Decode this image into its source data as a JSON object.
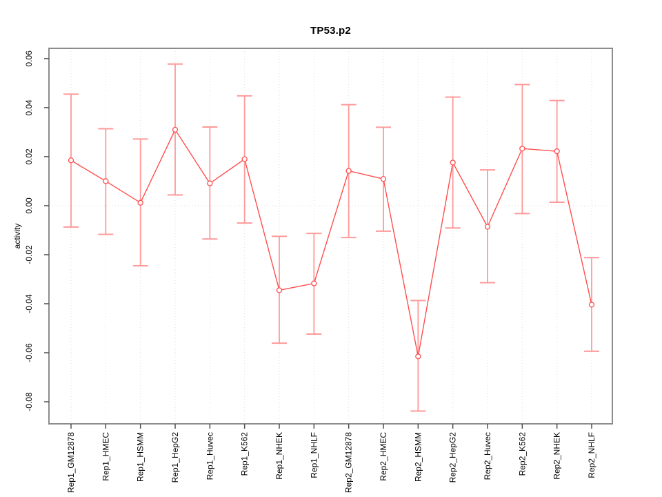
{
  "figure": {
    "background": "#ffffff"
  },
  "chart_data": {
    "type": "line",
    "title": "TP53.p2",
    "xlabel": "",
    "ylabel": "activity",
    "legend": "none",
    "grid": "vertical dotted line at each category; horizontal dotted line at y=0",
    "categories": [
      "Rep1_GM12878",
      "Rep1_HMEC",
      "Rep1_HSMM",
      "Rep1_HepG2",
      "Rep1_Huvec",
      "Rep1_K562",
      "Rep1_NHEK",
      "Rep1_NHLF",
      "Rep2_GM12878",
      "Rep2_HMEC",
      "Rep2_HSMM",
      "Rep2_HepG2",
      "Rep2_Huvec",
      "Rep2_K562",
      "Rep2_NHEK",
      "Rep2_NHLF"
    ],
    "series": [
      {
        "name": "activity",
        "marker": "open-circle",
        "values": [
          0.0185,
          0.01,
          0.0012,
          0.031,
          0.0091,
          0.019,
          -0.0345,
          -0.0317,
          0.0142,
          0.0109,
          -0.0615,
          0.0176,
          -0.0086,
          0.0233,
          0.0222,
          -0.0404
        ],
        "upper": [
          0.0455,
          0.0314,
          0.0272,
          0.0578,
          0.0321,
          0.0448,
          -0.0125,
          -0.0113,
          0.0412,
          0.032,
          -0.0387,
          0.0443,
          0.0146,
          0.0494,
          0.0429,
          -0.0212
        ],
        "lower": [
          -0.0087,
          -0.0117,
          -0.0245,
          0.0044,
          -0.0136,
          -0.0071,
          -0.0561,
          -0.0524,
          -0.013,
          -0.0104,
          -0.0838,
          -0.0091,
          -0.0314,
          -0.0032,
          0.0014,
          -0.0594
        ]
      }
    ],
    "ylim": [
      -0.089,
      0.0642
    ],
    "yticks": [
      -0.08,
      -0.06,
      -0.04,
      -0.02,
      0.0,
      0.02,
      0.04,
      0.06
    ],
    "ytick_labels": [
      "-0.08",
      "-0.06",
      "-0.04",
      "-0.02",
      "0.00",
      "0.02",
      "0.04",
      "0.06"
    ],
    "colors": {
      "line": "#FF4D4D",
      "marker_stroke": "#FF4D4D",
      "marker_fill": "#FFFFFF",
      "error_bar": "#FF9999",
      "grid": "#DEDEDE",
      "zero_line": "#DBDBDB",
      "frame": "#8C8C8C",
      "tick": "#4D4D4D",
      "text": "#000000"
    }
  }
}
